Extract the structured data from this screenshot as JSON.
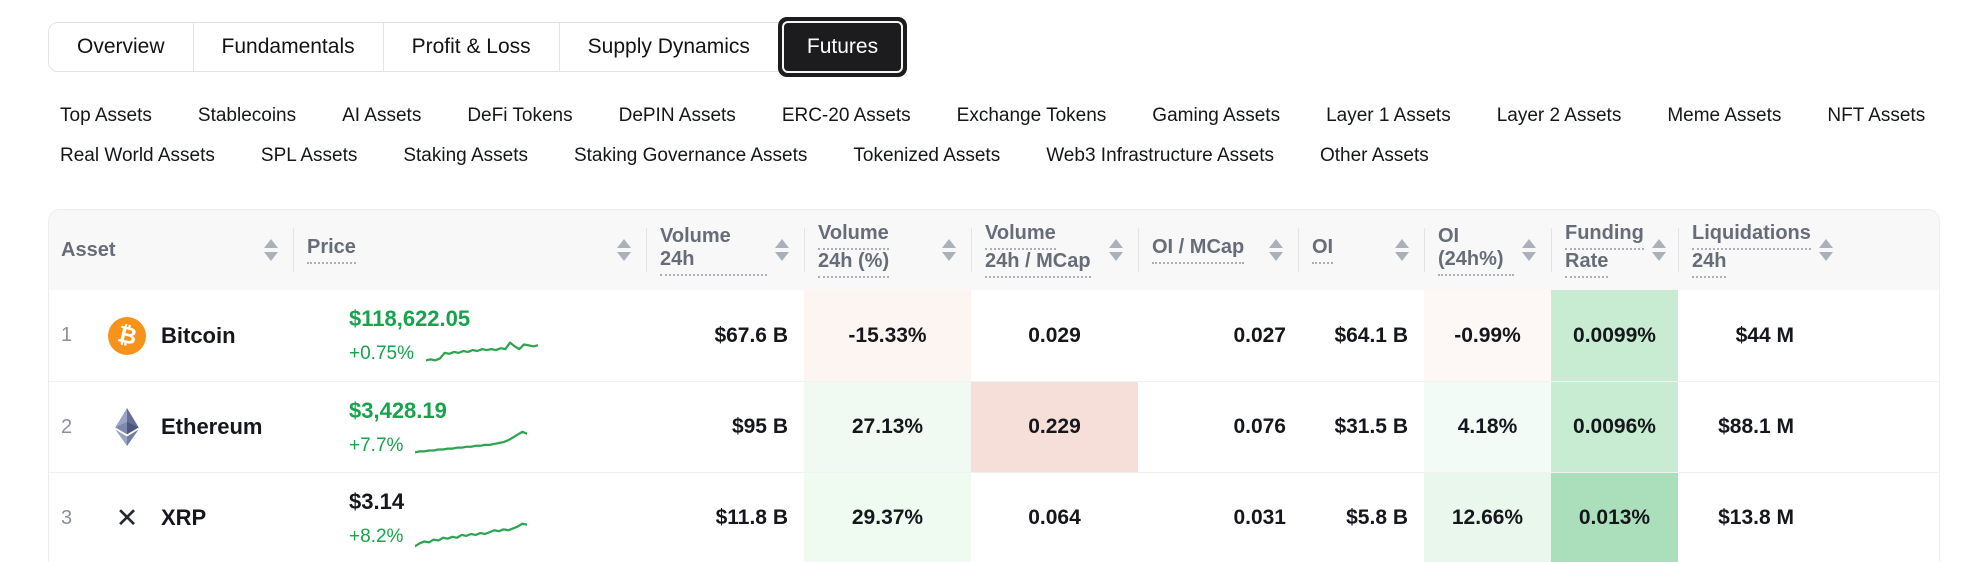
{
  "colors": {
    "accent_green": "#17a34b",
    "spark_green": "#2ca452",
    "bitcoin_orange": "#f7931a",
    "active_tab_bg": "#1c1c1e",
    "header_text_gray": "#676d78"
  },
  "tabs": [
    {
      "label": "Overview",
      "active": false
    },
    {
      "label": "Fundamentals",
      "active": false
    },
    {
      "label": "Profit & Loss",
      "active": false
    },
    {
      "label": "Supply Dynamics",
      "active": false
    },
    {
      "label": "Futures",
      "active": true
    }
  ],
  "filters": {
    "row1": [
      "Top Assets",
      "Stablecoins",
      "AI Assets",
      "DeFi Tokens",
      "DePIN Assets",
      "ERC-20 Assets",
      "Exchange Tokens",
      "Gaming Assets",
      "Layer 1 Assets",
      "Layer 2 Assets",
      "Meme Assets",
      "NFT Assets"
    ],
    "row2": [
      "Real World Assets",
      "SPL Assets",
      "Staking Assets",
      "Staking Governance Assets",
      "Tokenized Assets",
      "Web3 Infrastructure Assets",
      "Other Assets"
    ]
  },
  "table": {
    "columns": [
      {
        "id": "asset",
        "label": [
          "Asset"
        ],
        "underline": false,
        "align": "left",
        "sortable": true
      },
      {
        "id": "price",
        "label": [
          "Price"
        ],
        "underline": true,
        "align": "left",
        "sortable": true
      },
      {
        "id": "volume-24h",
        "label": [
          "Volume 24h"
        ],
        "underline": true,
        "align": "right",
        "sortable": true
      },
      {
        "id": "volume-24h-pct",
        "label": [
          "Volume",
          "24h (%)"
        ],
        "underline": true,
        "align": "center",
        "sortable": true
      },
      {
        "id": "volume-24h-mcap",
        "label": [
          "Volume",
          "24h / MCap"
        ],
        "underline": true,
        "align": "center",
        "sortable": true
      },
      {
        "id": "oi-mcap",
        "label": [
          "OI / MCap"
        ],
        "underline": true,
        "align": "right",
        "sortable": true
      },
      {
        "id": "oi",
        "label": [
          "OI"
        ],
        "underline": true,
        "align": "right",
        "sortable": true
      },
      {
        "id": "oi-24h-pct",
        "label": [
          "OI (24h%)"
        ],
        "underline": true,
        "align": "center",
        "sortable": true
      },
      {
        "id": "funding-rate",
        "label": [
          "Funding",
          "Rate"
        ],
        "underline": true,
        "align": "center",
        "sortable": true
      },
      {
        "id": "liquidations-24h",
        "label": [
          "Liquidations",
          "24h"
        ],
        "underline": true,
        "align": "right",
        "sortable": true
      },
      {
        "id": "spacer",
        "label": [],
        "underline": false,
        "align": "left",
        "sortable": false
      }
    ],
    "rows": [
      {
        "rank": "1",
        "name": "Bitcoin",
        "icon": "bitcoin-icon",
        "price": "$118,622.05",
        "change": "+0.75%",
        "price_color": "green",
        "sparkline": [
          25,
          24,
          25,
          23,
          17,
          18,
          16,
          17,
          15,
          16,
          14,
          15,
          13,
          14,
          13,
          14,
          12,
          13,
          6,
          10,
          13,
          8,
          9,
          10,
          9
        ],
        "values": [
          {
            "col": "volume-24h",
            "text": "$67.6 B"
          },
          {
            "col": "volume-24h-pct",
            "text": "-15.33%",
            "bg": "#fdf5f2"
          },
          {
            "col": "volume-24h-mcap",
            "text": "0.029"
          },
          {
            "col": "oi-mcap",
            "text": "0.027"
          },
          {
            "col": "oi",
            "text": "$64.1 B"
          },
          {
            "col": "oi-24h-pct",
            "text": "-0.99%",
            "bg": "#fdf7f5"
          },
          {
            "col": "funding-rate",
            "text": "0.0099%",
            "bg": "#c7ecd2"
          },
          {
            "col": "liquidations-24h",
            "text": "$44 M"
          }
        ]
      },
      {
        "rank": "2",
        "name": "Ethereum",
        "icon": "ethereum-icon",
        "price": "$3,428.19",
        "change": "+7.7%",
        "price_color": "green",
        "sparkline": [
          25,
          24,
          24,
          23,
          23,
          22,
          22,
          21,
          21,
          20,
          20,
          19,
          19,
          18,
          18,
          17,
          17,
          16,
          15,
          14,
          12,
          9,
          6,
          3,
          5
        ],
        "values": [
          {
            "col": "volume-24h",
            "text": "$95 B"
          },
          {
            "col": "volume-24h-pct",
            "text": "27.13%",
            "bg": "#f0faf2"
          },
          {
            "col": "volume-24h-mcap",
            "text": "0.229",
            "bg": "#f6ded9"
          },
          {
            "col": "oi-mcap",
            "text": "0.076"
          },
          {
            "col": "oi",
            "text": "$31.5 B"
          },
          {
            "col": "oi-24h-pct",
            "text": "4.18%",
            "bg": "#f2fbf5"
          },
          {
            "col": "funding-rate",
            "text": "0.0096%",
            "bg": "#c7ecd2"
          },
          {
            "col": "liquidations-24h",
            "text": "$88.1 M"
          }
        ]
      },
      {
        "rank": "3",
        "name": "XRP",
        "icon": "xrp-icon",
        "price": "$3.14",
        "change": "+8.2%",
        "price_color": "dark",
        "sparkline": [
          28,
          25,
          23,
          24,
          21,
          22,
          19,
          20,
          18,
          19,
          16,
          17,
          15,
          16,
          14,
          15,
          13,
          11,
          12,
          10,
          11,
          9,
          7,
          4,
          5
        ],
        "values": [
          {
            "col": "volume-24h",
            "text": "$11.8 B"
          },
          {
            "col": "volume-24h-pct",
            "text": "29.37%",
            "bg": "#effaf1"
          },
          {
            "col": "volume-24h-mcap",
            "text": "0.064"
          },
          {
            "col": "oi-mcap",
            "text": "0.031"
          },
          {
            "col": "oi",
            "text": "$5.8 B"
          },
          {
            "col": "oi-24h-pct",
            "text": "12.66%",
            "bg": "#e9f7ed"
          },
          {
            "col": "funding-rate",
            "text": "0.013%",
            "bg": "#abdfbc"
          },
          {
            "col": "liquidations-24h",
            "text": "$13.8 M"
          }
        ]
      }
    ]
  }
}
